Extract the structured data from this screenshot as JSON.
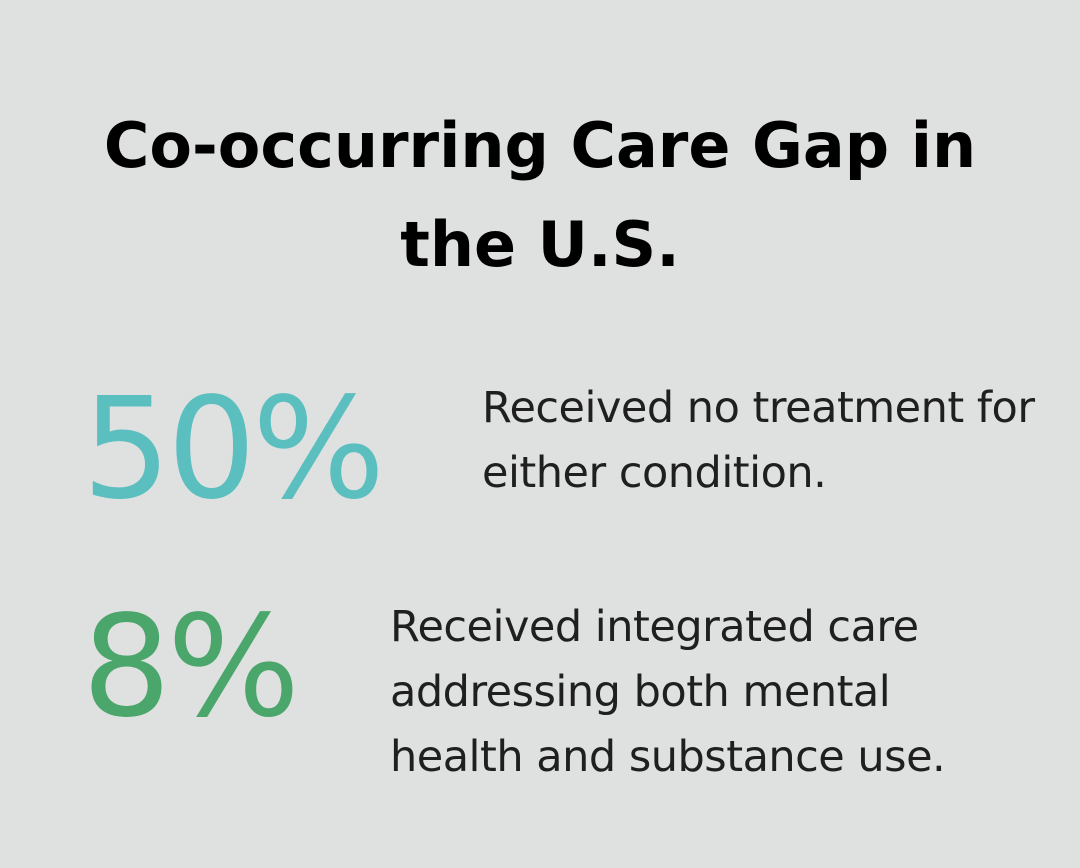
{
  "title": "Co-occurring Care Gap in the U.S.",
  "stats": [
    {
      "value": "50%",
      "description": "Received no treatment for either condition.",
      "color": "#5bbfbf"
    },
    {
      "value": "8%",
      "description": "Received integrated care addressing both mental health and substance use.",
      "color": "#4aa66b"
    }
  ]
}
